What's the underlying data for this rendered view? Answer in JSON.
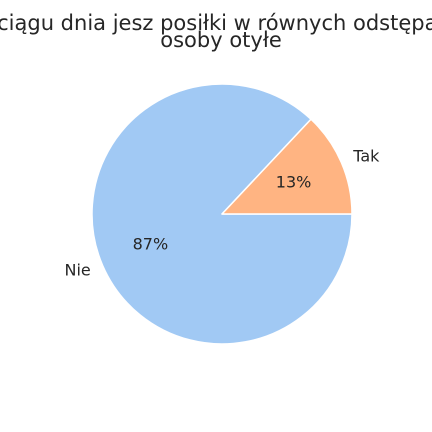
{
  "chart_data": {
    "type": "pie",
    "title_lines": [
      "W ciągu dnia jesz posiłki w równych odstępach",
      "osoby otyłe"
    ],
    "categories": [
      "Nie",
      "Tak"
    ],
    "values": [
      87,
      13
    ],
    "value_labels": [
      "87%",
      "13%"
    ],
    "colors": [
      "#a1c9f4",
      "#ffb482"
    ],
    "start_angle_deg": 0,
    "direction": "clockwise"
  }
}
